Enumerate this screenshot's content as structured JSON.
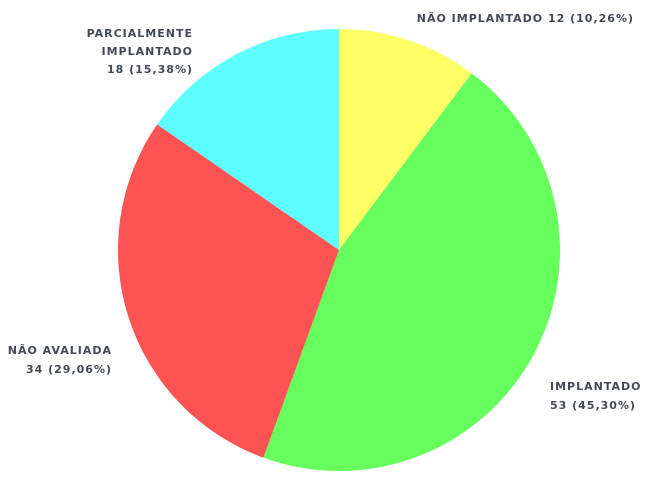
{
  "chart_data": {
    "type": "pie",
    "start_angle_deg": 0,
    "direction": "clockwise",
    "slices": [
      {
        "label": "NÃO IMPLANTADO",
        "value": 12,
        "percent_text": "(10,26%)",
        "color": "#ffff66"
      },
      {
        "label": "IMPLANTADO",
        "value": 53,
        "percent_text": "(45,30%)",
        "color": "#66ff5e"
      },
      {
        "label": "NÃO AVALIADA",
        "value": 34,
        "percent_text": "(29,06%)",
        "color": "#ff5252"
      },
      {
        "label": "PARCIALMENTE IMPLANTADO",
        "value": 18,
        "percent_text": "(15,38%)",
        "color": "#5effff"
      }
    ],
    "labels": {
      "nao_implantado": "NÃO IMPLANTADO 12 (10,26%)",
      "implantado_name": "IMPLANTADO",
      "implantado_value": "53 (45,30%)",
      "nao_avaliada_name": "NÃO AVALIADA",
      "nao_avaliada_value": "34 (29,06%)",
      "parcial_line1": "PARCIALMENTE",
      "parcial_line2": "IMPLANTADO",
      "parcial_value": "18 (15,38%)"
    }
  }
}
